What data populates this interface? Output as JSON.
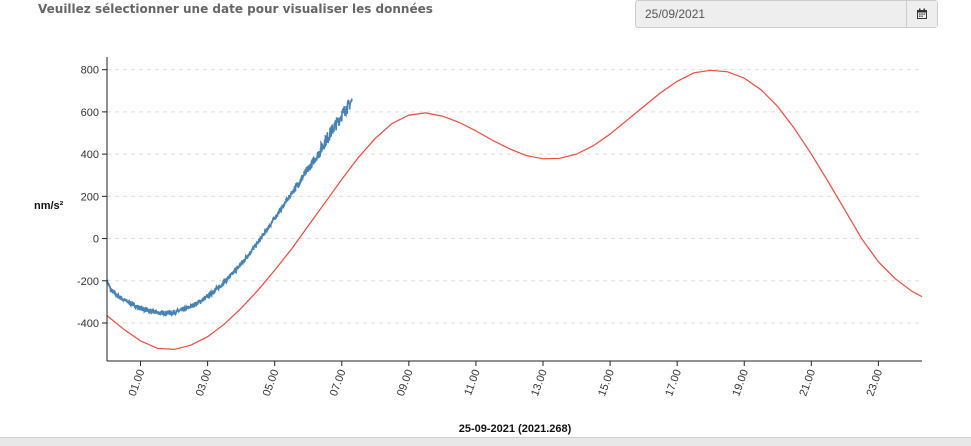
{
  "header": {
    "prompt": "Veuillez sélectionner une date pour visualiser les données"
  },
  "date_picker": {
    "value": "25/09/2021",
    "icon": "calendar-icon"
  },
  "colors": {
    "observed": "#4682b4",
    "model": "#f04a3c",
    "grid": "#dddddd",
    "axis": "#222222",
    "tick_text": "#333333"
  },
  "chart_data": {
    "type": "line",
    "xlabel": "25-09-2021 (2021.268)",
    "ylabel": "nm/s²",
    "xlim": [
      0,
      24.3
    ],
    "ylim": [
      -580,
      860
    ],
    "x_ticks": [
      "01.00",
      "03.00",
      "05.00",
      "07.00",
      "09.00",
      "11.00",
      "13.00",
      "15.00",
      "17.00",
      "19.00",
      "21.00",
      "23.00"
    ],
    "y_ticks": [
      "800",
      "600",
      "400",
      "200",
      "0",
      "-200",
      "-400"
    ],
    "grid": "horizontal dashed",
    "series": [
      {
        "x": [
          0.0,
          0.1,
          0.3,
          0.5,
          0.8,
          1.0,
          1.3,
          1.6,
          1.9,
          2.1,
          2.4,
          2.7,
          3.0,
          3.3,
          3.6,
          3.9,
          4.2,
          4.5,
          4.8,
          5.1,
          5.4,
          5.7,
          6.0,
          6.3,
          6.5,
          6.7,
          6.9,
          7.1,
          7.3
        ],
        "values": [
          -200,
          -240,
          -270,
          -290,
          -315,
          -330,
          -345,
          -352,
          -352,
          -345,
          -330,
          -305,
          -275,
          -235,
          -190,
          -140,
          -80,
          -20,
          50,
          120,
          190,
          260,
          330,
          400,
          460,
          510,
          560,
          610,
          650
        ]
      },
      {
        "x": [
          0.0,
          0.5,
          1.0,
          1.5,
          2.0,
          2.5,
          3.0,
          3.5,
          4.0,
          4.5,
          5.0,
          5.5,
          6.0,
          6.5,
          7.0,
          7.5,
          8.0,
          8.5,
          9.0,
          9.5,
          10.0,
          10.5,
          11.0,
          11.5,
          12.0,
          12.5,
          13.0,
          13.5,
          14.0,
          14.5,
          15.0,
          15.5,
          16.0,
          16.5,
          17.0,
          17.5,
          18.0,
          18.5,
          19.0,
          19.5,
          20.0,
          20.5,
          21.0,
          21.5,
          22.0,
          22.5,
          23.0,
          23.5,
          24.0,
          24.3
        ],
        "values": [
          -365,
          -430,
          -485,
          -520,
          -525,
          -505,
          -465,
          -405,
          -330,
          -245,
          -150,
          -50,
          60,
          170,
          280,
          385,
          475,
          545,
          585,
          595,
          580,
          550,
          510,
          465,
          425,
          393,
          378,
          380,
          400,
          440,
          495,
          560,
          625,
          690,
          745,
          785,
          797,
          790,
          760,
          705,
          625,
          520,
          400,
          270,
          135,
          0,
          -110,
          -190,
          -250,
          -275
        ]
      }
    ]
  }
}
